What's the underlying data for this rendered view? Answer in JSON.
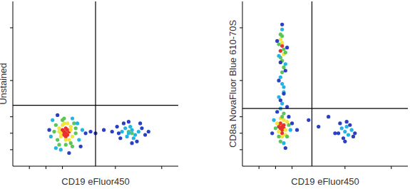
{
  "chart_data": [
    {
      "type": "scatter",
      "xlabel": "CD19 eFluor450",
      "ylabel": "Unstained",
      "xlim": [
        0,
        100
      ],
      "ylim": [
        0,
        100
      ],
      "xticks": [
        10,
        20,
        30,
        62,
        90
      ],
      "yticks": [
        10,
        20,
        30,
        52,
        84
      ],
      "tick_labels": false,
      "gates": {
        "x": 50,
        "y": 37
      },
      "series": [
        {
          "color": "#e8312a",
          "x": [
            31,
            32,
            33,
            30,
            32,
            34,
            31,
            33,
            32,
            30
          ],
          "values": [
            21,
            20,
            22,
            22,
            23,
            21,
            19,
            19,
            18,
            20
          ]
        },
        {
          "color": "#f3e33b",
          "x": [
            28,
            29,
            35,
            36,
            30,
            34,
            32,
            31,
            33,
            29,
            35,
            28
          ],
          "values": [
            23,
            18,
            24,
            18,
            25,
            16,
            16,
            26,
            26,
            20,
            22,
            21
          ]
        },
        {
          "color": "#5cc55a",
          "x": [
            26,
            27,
            37,
            38,
            30,
            35,
            32,
            25,
            38,
            28,
            36,
            31,
            70,
            72
          ],
          "values": [
            25,
            16,
            26,
            20,
            28,
            14,
            13,
            21,
            23,
            13,
            12,
            29,
            21,
            20
          ]
        },
        {
          "color": "#22b4e6",
          "x": [
            24,
            40,
            42,
            26,
            36,
            29,
            23,
            39,
            66,
            68,
            70,
            72,
            74,
            76,
            69,
            71,
            73
          ],
          "values": [
            28,
            16,
            22,
            11,
            29,
            10,
            18,
            26,
            21,
            23,
            20,
            22,
            19,
            21,
            18,
            24,
            17
          ]
        },
        {
          "color": "#2b3fc2",
          "x": [
            22,
            44,
            41,
            34,
            27,
            47,
            50,
            55,
            60,
            63,
            65,
            78,
            80,
            75,
            67,
            72,
            77,
            64,
            70,
            82
          ],
          "values": [
            22,
            20,
            12,
            8,
            31,
            21,
            20,
            22,
            21,
            24,
            17,
            23,
            19,
            15,
            26,
            14,
            26,
            20,
            27,
            21
          ]
        }
      ]
    },
    {
      "type": "scatter",
      "xlabel": "CD19 eFluor450",
      "ylabel": "CD8a NovaFluor Blue 610-70S",
      "xlim": [
        0,
        100
      ],
      "ylim": [
        0,
        100
      ],
      "xticks": [
        10,
        20,
        30,
        62,
        90
      ],
      "yticks": [
        10,
        20,
        30,
        52,
        84
      ],
      "tick_labels": false,
      "gates": {
        "x": 42,
        "y": 35
      },
      "series": [
        {
          "color": "#e8312a",
          "x": [
            23,
            24,
            25,
            24,
            23,
            25,
            22,
            24,
            24,
            23
          ],
          "values": [
            23,
            24,
            25,
            22,
            26,
            23,
            24,
            20,
            73,
            70
          ]
        },
        {
          "color": "#f3e33b",
          "x": [
            22,
            26,
            21,
            27,
            24,
            25,
            23,
            26,
            24,
            25,
            23
          ],
          "values": [
            21,
            22,
            26,
            27,
            18,
            28,
            29,
            19,
            75,
            68,
            77
          ]
        },
        {
          "color": "#5cc55a",
          "x": [
            20,
            28,
            22,
            27,
            24,
            23,
            25,
            24,
            23,
            25,
            24,
            22,
            25,
            23,
            24,
            26
          ],
          "values": [
            23,
            25,
            18,
            18,
            30,
            15,
            32,
            64,
            66,
            71,
            79,
            74,
            60,
            80,
            57,
            69
          ]
        },
        {
          "color": "#22b4e6",
          "x": [
            19,
            29,
            25,
            23,
            24,
            22,
            25,
            24,
            23,
            25,
            26,
            22,
            24,
            62,
            64,
            60,
            66,
            63
          ],
          "values": [
            28,
            22,
            14,
            35,
            38,
            42,
            45,
            50,
            54,
            48,
            62,
            67,
            83,
            21,
            19,
            23,
            22,
            24
          ]
        },
        {
          "color": "#2b3fc2",
          "x": [
            18,
            30,
            26,
            21,
            27,
            23,
            22,
            26,
            25,
            24,
            21,
            27,
            23,
            28,
            33,
            40,
            46,
            52,
            58,
            56,
            61,
            65,
            68,
            59,
            63,
            67,
            62
          ],
          "values": [
            20,
            26,
            11,
            33,
            36,
            40,
            52,
            58,
            44,
            86,
            76,
            72,
            63,
            30,
            22,
            28,
            24,
            30,
            20,
            20,
            17,
            25,
            20,
            26,
            27,
            18,
            15
          ]
        }
      ]
    }
  ]
}
